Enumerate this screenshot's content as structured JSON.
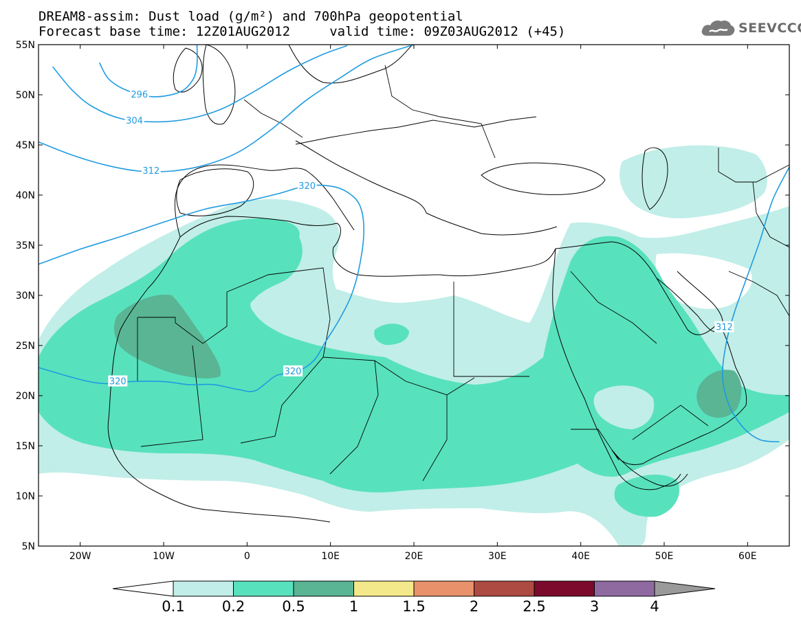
{
  "header": {
    "title_line_1": "DREAM8-assim: Dust load (g/m²) and 700hPa geopotential",
    "title_line_2": "Forecast base time: 12Z01AUG2012     valid time: 09Z03AUG2012 (+45)",
    "logo_text": "SEEVCCC",
    "logo_icon": "cloud-icon"
  },
  "map": {
    "lon_range": [
      -25,
      65
    ],
    "lat_range": [
      5,
      55
    ],
    "lon_ticks": [
      {
        "value": -20,
        "label": "20W"
      },
      {
        "value": -10,
        "label": "10W"
      },
      {
        "value": 0,
        "label": "0"
      },
      {
        "value": 10,
        "label": "10E"
      },
      {
        "value": 20,
        "label": "20E"
      },
      {
        "value": 30,
        "label": "30E"
      },
      {
        "value": 40,
        "label": "40E"
      },
      {
        "value": 50,
        "label": "50E"
      },
      {
        "value": 60,
        "label": "60E"
      }
    ],
    "lat_ticks": [
      {
        "value": 55,
        "label": "55N"
      },
      {
        "value": 50,
        "label": "50N"
      },
      {
        "value": 45,
        "label": "45N"
      },
      {
        "value": 40,
        "label": "40N"
      },
      {
        "value": 35,
        "label": "35N"
      },
      {
        "value": 30,
        "label": "30N"
      },
      {
        "value": 25,
        "label": "25N"
      },
      {
        "value": 20,
        "label": "20N"
      },
      {
        "value": 15,
        "label": "15N"
      },
      {
        "value": 10,
        "label": "10N"
      },
      {
        "value": 5,
        "label": "5N"
      }
    ],
    "contour_color": "#1f9be0",
    "contours": [
      {
        "label": "296",
        "points": [
          [
            -17.7,
            53.2
          ],
          [
            -16.5,
            51.5
          ],
          [
            -14,
            50.3
          ],
          [
            -11,
            49.8
          ],
          [
            -8,
            50.3
          ],
          [
            -6.5,
            51.5
          ],
          [
            -6,
            53
          ],
          [
            -6,
            55
          ]
        ],
        "label_at": [
          -12.9,
          50.0
        ]
      },
      {
        "label": "304",
        "points": [
          [
            -23.3,
            52.8
          ],
          [
            -21,
            50.5
          ],
          [
            -18.5,
            48.8
          ],
          [
            -15,
            47.6
          ],
          [
            -11,
            47.3
          ],
          [
            -7,
            47.6
          ],
          [
            -3,
            48.6
          ],
          [
            1,
            50.4
          ],
          [
            5,
            52.4
          ],
          [
            9,
            54.0
          ],
          [
            12,
            54.9
          ]
        ],
        "label_at": [
          -13.5,
          47.4
        ]
      },
      {
        "label": "312",
        "points": [
          [
            -25,
            45.3
          ],
          [
            -21,
            44.0
          ],
          [
            -17,
            43.0
          ],
          [
            -13,
            42.4
          ],
          [
            -9,
            42.4
          ],
          [
            -5,
            43.0
          ],
          [
            -1,
            44.3
          ],
          [
            3,
            46.6
          ],
          [
            7,
            49.4
          ],
          [
            11,
            51.6
          ],
          [
            15,
            53.6
          ],
          [
            20,
            55
          ]
        ],
        "label_at": [
          -11.5,
          42.4
        ]
      },
      {
        "label": "320",
        "points": [
          [
            -25,
            33.1
          ],
          [
            -20,
            34.6
          ],
          [
            -15,
            35.9
          ],
          [
            -10,
            37.3
          ],
          [
            -5,
            38.6
          ],
          [
            0,
            39.4
          ],
          [
            4,
            40.2
          ],
          [
            7,
            40.9
          ],
          [
            10,
            40.9
          ],
          [
            12,
            40.3
          ],
          [
            13.5,
            39
          ],
          [
            14,
            36.5
          ],
          [
            13.5,
            33
          ],
          [
            12.5,
            30
          ],
          [
            11,
            27.5
          ],
          [
            9.5,
            25.5
          ],
          [
            8,
            23.5
          ],
          [
            6,
            22.4
          ],
          [
            3.5,
            22.0
          ],
          [
            1,
            20.5
          ],
          [
            -1,
            20.6
          ],
          [
            -4,
            21.1
          ],
          [
            -7,
            21.1
          ],
          [
            -10,
            21.4
          ],
          [
            -14,
            21.4
          ],
          [
            -17,
            21.2
          ],
          [
            -20,
            21.6
          ],
          [
            -25,
            22.8
          ]
        ],
        "label_at": [
          7.2,
          40.9
        ],
        "label_at_2": [
          5.5,
          22.4
        ],
        "label_at_3": [
          -15.5,
          21.4
        ]
      },
      {
        "label": "312",
        "points": [
          [
            65,
            42.8
          ],
          [
            63,
            39.5
          ],
          [
            61.5,
            35.5
          ],
          [
            60,
            32
          ],
          [
            58.5,
            28.5
          ],
          [
            57.5,
            25.5
          ],
          [
            57,
            22
          ],
          [
            57.8,
            19
          ],
          [
            59.5,
            16.8
          ],
          [
            61.5,
            15.6
          ],
          [
            63.8,
            15.4
          ]
        ],
        "label_at": [
          57.2,
          26.8
        ]
      }
    ],
    "dust_colors": {
      "level_0_1": "#c1eee8",
      "level_0_2": "#58e1bd",
      "level_0_5": "#59b594"
    }
  },
  "colorbar": {
    "labels": [
      "0.1",
      "0.2",
      "0.5",
      "1",
      "1.5",
      "2",
      "2.5",
      "3",
      "4"
    ],
    "colors": [
      "#ffffff",
      "#c1eee8",
      "#58e1bd",
      "#59b594",
      "#f4e98a",
      "#e8916a",
      "#ad4a42",
      "#7b0a2c",
      "#8f6aa1",
      "#9a9a9a"
    ]
  }
}
